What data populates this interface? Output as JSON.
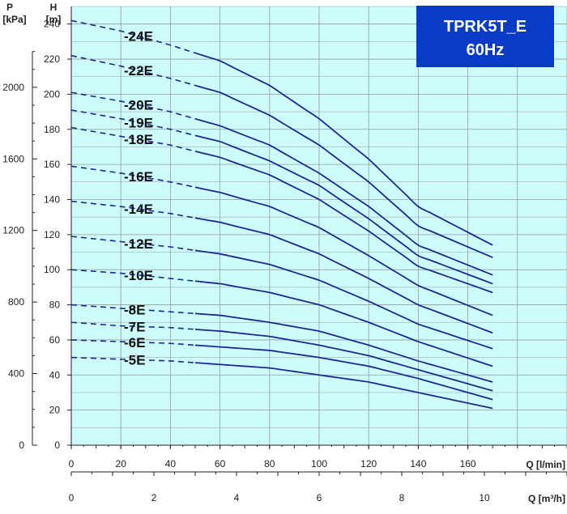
{
  "chart_data": {
    "type": "line",
    "title": "TPRK5T_E",
    "subtitle": "60Hz",
    "xlabel": "Q [l/min]",
    "x2label": "Q [m³/h]",
    "ylabel": "H",
    "ylabel_unit": "[m]",
    "y2label": "P",
    "y2label_unit": "[kPa]",
    "xlim": [
      0,
      200
    ],
    "ylim": [
      0,
      250
    ],
    "x_ticks": [
      0,
      20,
      40,
      60,
      80,
      100,
      120,
      140,
      160
    ],
    "y_ticks": [
      0,
      20,
      40,
      60,
      80,
      100,
      120,
      140,
      160,
      180,
      200,
      220,
      240
    ],
    "x2_ticks": [
      0,
      2,
      4,
      6,
      8,
      10
    ],
    "y2_ticks": [
      0,
      400,
      800,
      1200,
      1600,
      2000
    ],
    "grid": true,
    "dashed_until_x": 50,
    "x": [
      0,
      20,
      40,
      60,
      80,
      100,
      120,
      140,
      170
    ],
    "series": [
      {
        "name": "-24E",
        "values": [
          242,
          236,
          228,
          219,
          205,
          186,
          163,
          136,
          114
        ]
      },
      {
        "name": "-22E",
        "values": [
          222,
          216,
          209,
          201,
          188,
          171,
          150,
          125,
          107
        ]
      },
      {
        "name": "-20E",
        "values": [
          201,
          196,
          190,
          182,
          171,
          155,
          136,
          114,
          97
        ]
      },
      {
        "name": "-19E",
        "values": [
          191,
          186,
          180,
          173,
          162,
          148,
          129,
          108,
          92
        ]
      },
      {
        "name": "-18E",
        "values": [
          181,
          176,
          171,
          164,
          154,
          140,
          122,
          102,
          87
        ]
      },
      {
        "name": "-16E",
        "values": [
          159,
          155,
          150,
          144,
          136,
          124,
          108,
          91,
          74
        ]
      },
      {
        "name": "-14E",
        "values": [
          139,
          136,
          132,
          127,
          120,
          109,
          95,
          80,
          64
        ]
      },
      {
        "name": "-12E",
        "values": [
          119,
          116,
          113,
          109,
          103,
          94,
          82,
          69,
          55
        ]
      },
      {
        "name": "-10E",
        "values": [
          100,
          98,
          95,
          92,
          87,
          80,
          70,
          59,
          45
        ]
      },
      {
        "name": "-8E",
        "values": [
          80,
          78,
          76,
          74,
          70,
          65,
          57,
          48,
          36
        ]
      },
      {
        "name": "-7E",
        "values": [
          70,
          68,
          67,
          65,
          62,
          57,
          51,
          43,
          31
        ]
      },
      {
        "name": "-6E",
        "values": [
          60,
          59,
          58,
          56,
          54,
          50,
          45,
          38,
          26
        ]
      },
      {
        "name": "-5E",
        "values": [
          50,
          49,
          48,
          46,
          44,
          40,
          36,
          30,
          21
        ]
      }
    ],
    "colors": {
      "plot_background": "#cdfcfc",
      "grid": "#9a9a9a",
      "curve": "#1b2a8f",
      "title_box": "#0a3bc6"
    }
  }
}
